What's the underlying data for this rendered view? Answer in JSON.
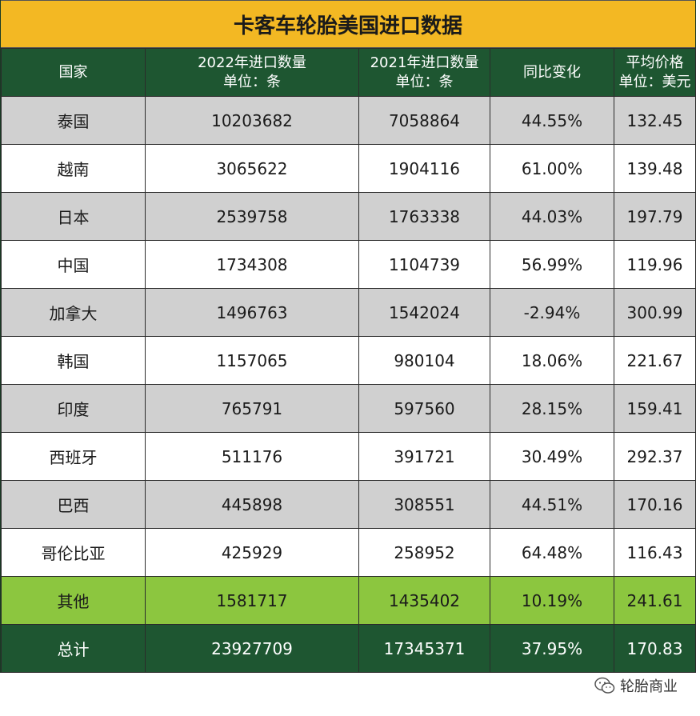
{
  "title": "卡客车轮胎美国进口数据",
  "headers": {
    "country": "国家",
    "qty2022_line1": "2022年进口数量",
    "qty2022_line2": "单位：条",
    "qty2021_line1": "2021年进口数量",
    "qty2021_line2": "单位：条",
    "yoy": "同比变化",
    "price_line1": "平均价格",
    "price_line2": "单位：美元"
  },
  "rows": [
    {
      "country": "泰国",
      "qty2022": "10203682",
      "qty2021": "7058864",
      "yoy": "44.55%",
      "price": "132.45"
    },
    {
      "country": "越南",
      "qty2022": "3065622",
      "qty2021": "1904116",
      "yoy": "61.00%",
      "price": "139.48"
    },
    {
      "country": "日本",
      "qty2022": "2539758",
      "qty2021": "1763338",
      "yoy": "44.03%",
      "price": "197.79"
    },
    {
      "country": "中国",
      "qty2022": "1734308",
      "qty2021": "1104739",
      "yoy": "56.99%",
      "price": "119.96"
    },
    {
      "country": "加拿大",
      "qty2022": "1496763",
      "qty2021": "1542024",
      "yoy": "-2.94%",
      "price": "300.99"
    },
    {
      "country": "韩国",
      "qty2022": "1157065",
      "qty2021": "980104",
      "yoy": "18.06%",
      "price": "221.67"
    },
    {
      "country": "印度",
      "qty2022": "765791",
      "qty2021": "597560",
      "yoy": "28.15%",
      "price": "159.41"
    },
    {
      "country": "西班牙",
      "qty2022": "511176",
      "qty2021": "391721",
      "yoy": "30.49%",
      "price": "292.37"
    },
    {
      "country": "巴西",
      "qty2022": "445898",
      "qty2021": "308551",
      "yoy": "44.51%",
      "price": "170.16"
    },
    {
      "country": "哥伦比亚",
      "qty2022": "425929",
      "qty2021": "258952",
      "yoy": "64.48%",
      "price": "116.43"
    },
    {
      "country": "其他",
      "qty2022": "1581717",
      "qty2021": "1435402",
      "yoy": "10.19%",
      "price": "241.61"
    },
    {
      "country": "总计",
      "qty2022": "23927709",
      "qty2021": "17345371",
      "yoy": "37.95%",
      "price": "170.83"
    }
  ],
  "footer": {
    "icon": "wechat-icon",
    "source": "轮胎商业"
  },
  "colors": {
    "title_bg": "#f3b823",
    "header_bg": "#1e5631",
    "row_gray": "#d0d0d0",
    "row_other": "#8cc63f",
    "row_total": "#1e5631"
  }
}
